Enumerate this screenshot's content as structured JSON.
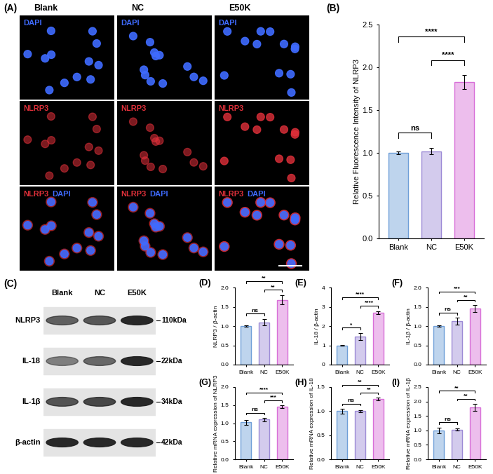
{
  "panel_a": {
    "label": "(A)",
    "columns": [
      "Blank",
      "NC",
      "E50K"
    ],
    "rows": [
      [
        {
          "text": "DAPI",
          "color": "#3f6bff"
        }
      ],
      [
        {
          "text": "NLRP3",
          "color": "#e0303a"
        }
      ],
      [
        {
          "text": "NLRP3",
          "color": "#e0303a"
        },
        {
          "text": "DAPI",
          "color": "#3f6bff"
        }
      ]
    ]
  },
  "panel_c": {
    "label": "(C)",
    "columns": [
      "Blank",
      "NC",
      "E50K"
    ],
    "proteins": [
      {
        "name": "NLRP3",
        "size": "110kDa"
      },
      {
        "name": "IL-18",
        "size": "22kDa"
      },
      {
        "name": "IL-1β",
        "size": "34kDa"
      },
      {
        "name": "β-actin",
        "size": "42kDa"
      }
    ]
  },
  "chart_data": [
    {
      "type": "bar",
      "title": "(B)",
      "categories": [
        "Blank",
        "NC",
        "E50K"
      ],
      "values": [
        1.0,
        1.02,
        1.83
      ],
      "errors": [
        0.02,
        0.04,
        0.08
      ],
      "colors": [
        "#6f9fd8",
        "#9d8bd6",
        "#d86fd8"
      ],
      "y_label": "Relative Fluorescence Intensity of NLRP3",
      "ylim": [
        0,
        2.5
      ],
      "yticks": [
        {
          "value": 0,
          "label": "0.0"
        },
        {
          "value": 0.5,
          "label": "0.5"
        },
        {
          "value": 1.0,
          "label": "1.0"
        },
        {
          "value": 1.5,
          "label": "1.5"
        },
        {
          "value": 2.0,
          "label": "2.0"
        },
        {
          "value": 2.5,
          "label": "2.5"
        }
      ],
      "annotations": [
        {
          "from": "Blank",
          "to": "NC",
          "text": "ns"
        },
        {
          "from": "NC",
          "to": "E50K",
          "text": "****"
        },
        {
          "from": "Blank",
          "to": "E50K",
          "text": "****"
        }
      ]
    },
    {
      "type": "bar",
      "title": "(D)",
      "categories": [
        "Blank",
        "NC",
        "E50K"
      ],
      "values": [
        1.0,
        1.1,
        1.68
      ],
      "errors": [
        0.01,
        0.08,
        0.12
      ],
      "colors": [
        "#6f9fd8",
        "#9d8bd6",
        "#d86fd8"
      ],
      "y_label": "NLRP3 / β-actin",
      "ylim": [
        0,
        2.0
      ],
      "yticks": [
        {
          "value": 0,
          "label": "0.0"
        },
        {
          "value": 0.5,
          "label": "0.5"
        },
        {
          "value": 1.0,
          "label": "1.0"
        },
        {
          "value": 1.5,
          "label": "1.5"
        },
        {
          "value": 2.0,
          "label": "2.0"
        }
      ],
      "annotations": [
        {
          "from": "Blank",
          "to": "NC",
          "text": "ns"
        },
        {
          "from": "NC",
          "to": "E50K",
          "text": "**"
        },
        {
          "from": "Blank",
          "to": "E50K",
          "text": "**"
        }
      ]
    },
    {
      "type": "bar",
      "title": "(E)",
      "categories": [
        "Blank",
        "NC",
        "E50K"
      ],
      "values": [
        1.0,
        1.45,
        2.7
      ],
      "errors": [
        0.02,
        0.18,
        0.07
      ],
      "colors": [
        "#6f9fd8",
        "#9d8bd6",
        "#d86fd8"
      ],
      "y_label": "IL-18 / β-actin",
      "ylim": [
        0,
        4
      ],
      "yticks": [
        0,
        1,
        2,
        3,
        4
      ],
      "annotations": [
        {
          "from": "Blank",
          "to": "NC",
          "text": "*"
        },
        {
          "from": "NC",
          "to": "E50K",
          "text": "****"
        },
        {
          "from": "Blank",
          "to": "E50K",
          "text": "****"
        }
      ]
    },
    {
      "type": "bar",
      "title": "(F)",
      "categories": [
        "Blank",
        "NC",
        "E50K"
      ],
      "values": [
        1.0,
        1.12,
        1.45
      ],
      "errors": [
        0.02,
        0.09,
        0.09
      ],
      "colors": [
        "#6f9fd8",
        "#9d8bd6",
        "#d86fd8"
      ],
      "y_label": "IL-1β / β-actin",
      "ylim": [
        0,
        2.0
      ],
      "yticks": [
        {
          "value": 0,
          "label": "0.0"
        },
        {
          "value": 0.5,
          "label": "0.5"
        },
        {
          "value": 1.0,
          "label": "1.0"
        },
        {
          "value": 1.5,
          "label": "1.5"
        },
        {
          "value": 2.0,
          "label": "2.0"
        }
      ],
      "annotations": [
        {
          "from": "Blank",
          "to": "NC",
          "text": "ns"
        },
        {
          "from": "NC",
          "to": "E50K",
          "text": "**"
        },
        {
          "from": "Blank",
          "to": "E50K",
          "text": "***"
        }
      ]
    },
    {
      "type": "bar",
      "title": "(G)",
      "categories": [
        "Blank",
        "NC",
        "E50K"
      ],
      "values": [
        1.02,
        1.1,
        1.45
      ],
      "errors": [
        0.06,
        0.05,
        0.04
      ],
      "colors": [
        "#6f9fd8",
        "#9d8bd6",
        "#d86fd8"
      ],
      "y_label": "Relative mRNA expression of NLRP3",
      "ylim": [
        0,
        2.0
      ],
      "yticks": [
        {
          "value": 0,
          "label": "0.0"
        },
        {
          "value": 0.5,
          "label": "0.5"
        },
        {
          "value": 1.0,
          "label": "1.0"
        },
        {
          "value": 1.5,
          "label": "1.5"
        },
        {
          "value": 2.0,
          "label": "2.0"
        }
      ],
      "annotations": [
        {
          "from": "Blank",
          "to": "NC",
          "text": "ns"
        },
        {
          "from": "NC",
          "to": "E50K",
          "text": "***"
        },
        {
          "from": "Blank",
          "to": "E50K",
          "text": "****"
        }
      ]
    },
    {
      "type": "bar",
      "title": "(H)",
      "categories": [
        "Blank",
        "NC",
        "E50K"
      ],
      "values": [
        1.0,
        1.0,
        1.25
      ],
      "errors": [
        0.05,
        0.02,
        0.03
      ],
      "colors": [
        "#6f9fd8",
        "#9d8bd6",
        "#d86fd8"
      ],
      "y_label": "Relative mRNA expression of IL-18",
      "ylim": [
        0,
        1.5
      ],
      "yticks": [
        {
          "value": 0,
          "label": "0.0"
        },
        {
          "value": 0.5,
          "label": "0.5"
        },
        {
          "value": 1.0,
          "label": "1.0"
        },
        {
          "value": 1.5,
          "label": "1.5"
        }
      ],
      "annotations": [
        {
          "from": "Blank",
          "to": "NC",
          "text": "ns"
        },
        {
          "from": "NC",
          "to": "E50K",
          "text": "**"
        },
        {
          "from": "Blank",
          "to": "E50K",
          "text": "**"
        }
      ]
    },
    {
      "type": "bar",
      "title": "(I)",
      "categories": [
        "Blank",
        "NC",
        "E50K"
      ],
      "values": [
        1.0,
        1.03,
        1.8
      ],
      "errors": [
        0.1,
        0.03,
        0.12
      ],
      "colors": [
        "#6f9fd8",
        "#9d8bd6",
        "#d86fd8"
      ],
      "y_label": "Relative mRNA expression of IL-1β",
      "ylim": [
        0,
        2.5
      ],
      "yticks": [
        {
          "value": 0,
          "label": "0.0"
        },
        {
          "value": 0.5,
          "label": "0.5"
        },
        {
          "value": 1.0,
          "label": "1.0"
        },
        {
          "value": 1.5,
          "label": "1.5"
        },
        {
          "value": 2.0,
          "label": "2.0"
        },
        {
          "value": 2.5,
          "label": "2.5"
        }
      ],
      "annotations": [
        {
          "from": "Blank",
          "to": "NC",
          "text": "ns"
        },
        {
          "from": "NC",
          "to": "E50K",
          "text": "**"
        },
        {
          "from": "Blank",
          "to": "E50K",
          "text": "**"
        }
      ]
    }
  ]
}
